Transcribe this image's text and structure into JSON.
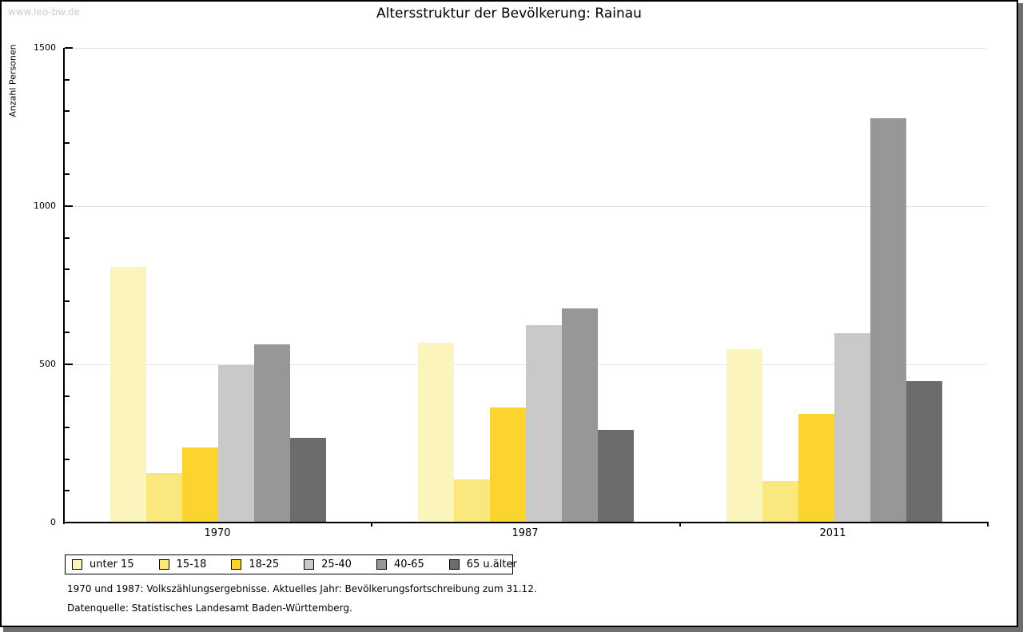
{
  "watermark": "www.leo-bw.de",
  "title": "Altersstruktur der Bevölkerung: Rainau",
  "footnotes": {
    "line1": "1970 und 1987: Volkszählungsergebnisse. Aktuelles Jahr: Bevölkerungsfortschreibung zum 31.12.",
    "line2": "Datenquelle: Statistisches Landesamt Baden-Württemberg."
  },
  "chart_data": {
    "type": "bar",
    "title": "Altersstruktur der Bevölkerung: Rainau",
    "xlabel": "",
    "ylabel": "Anzahl Personen",
    "categories": [
      "1970",
      "1987",
      "2011"
    ],
    "series": [
      {
        "name": "unter 15",
        "color": "#fcf4bd",
        "values": [
          805,
          565,
          545
        ]
      },
      {
        "name": "15-18",
        "color": "#fae77d",
        "values": [
          155,
          135,
          130
        ]
      },
      {
        "name": "18-25",
        "color": "#fcd42f",
        "values": [
          235,
          360,
          340
        ]
      },
      {
        "name": "25-40",
        "color": "#c9c9c9",
        "values": [
          495,
          620,
          595
        ]
      },
      {
        "name": "40-65",
        "color": "#979797",
        "values": [
          560,
          675,
          1275
        ]
      },
      {
        "name": "65 u.älter",
        "color": "#6c6c6c",
        "values": [
          265,
          290,
          445
        ]
      }
    ],
    "ylim": [
      0,
      1500
    ],
    "yticks": [
      0,
      500,
      1000,
      1500
    ],
    "minor_tick_step": 100,
    "grid": true,
    "legend_position": "bottom-left"
  }
}
